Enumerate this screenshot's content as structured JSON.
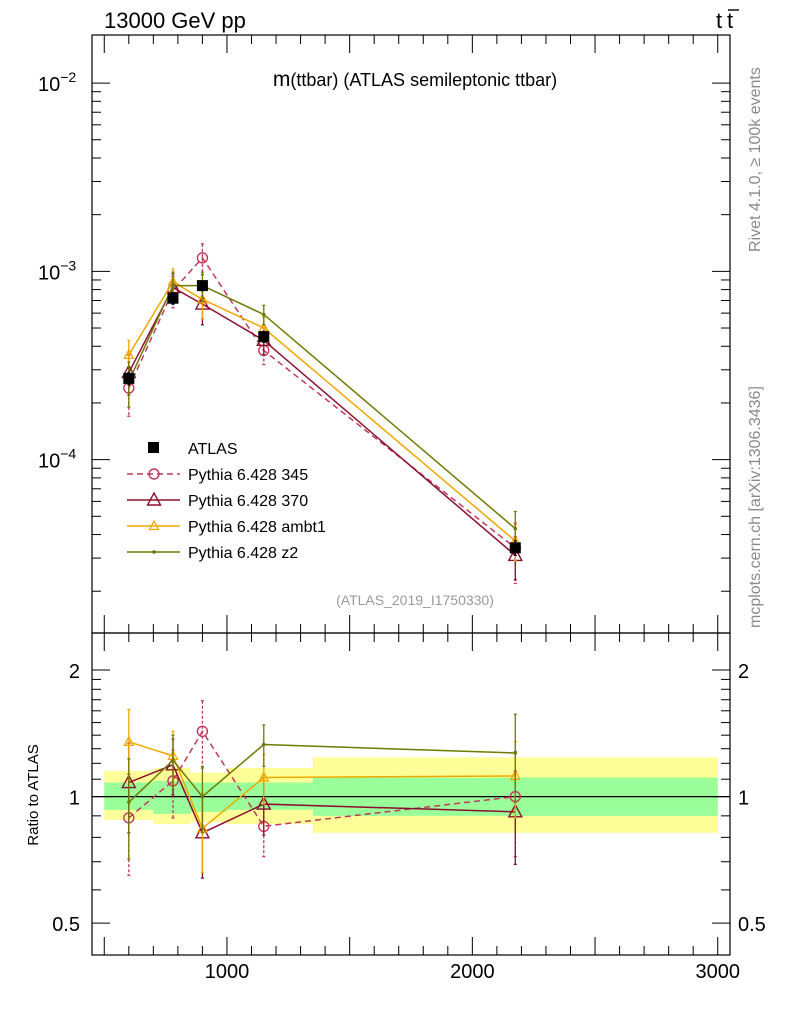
{
  "header": {
    "left": "13000 GeV pp",
    "right": "t",
    "right_bar": "t"
  },
  "side_labels": {
    "rivet": "Rivet 4.1.0, ≥ 100k events",
    "mcplots": "mcplots.cern.ch [arXiv:1306.3436]"
  },
  "colors": {
    "data": "#000000",
    "p345": "#c0395a",
    "p370": "#8b1030",
    "ambt1": "#f0a800",
    "z2": "#6f7a00",
    "band_inner": "#9afe9a",
    "band_outer": "#ffff99"
  },
  "chart_data": [
    {
      "type": "line",
      "title": "m(ttbar) (ATLAS semileptonic ttbar)",
      "title_main": "m",
      "title_rest": "(ttbar) (ATLAS semileptonic ttbar)",
      "analysis_tag": "(ATLAS_2019_I1750330)",
      "xlabel": "",
      "ylabel": "",
      "yscale": "log",
      "xlim": [
        450,
        3050
      ],
      "ylim": [
        1.2e-05,
        0.018
      ],
      "ytick_labels": [
        {
          "value": 0.01,
          "base": "10",
          "exp": "−2"
        },
        {
          "value": 0.001,
          "base": "10",
          "exp": "−3"
        },
        {
          "value": 0.0001,
          "base": "10",
          "exp": "−4"
        }
      ],
      "legend": [
        "ATLAS",
        "Pythia 6.428 345",
        "Pythia 6.428 370",
        "Pythia 6.428 ambt1",
        "Pythia 6.428 z2"
      ],
      "x": [
        600,
        780,
        900,
        1150,
        2175
      ],
      "series": [
        {
          "name": "ATLAS",
          "key": "data",
          "marker": "square",
          "values": [
            0.00027,
            0.00072,
            0.00084,
            0.00045,
            3.4e-05
          ],
          "err": [
            2e-05,
            5e-05,
            5e-05,
            3e-05,
            3e-06
          ]
        },
        {
          "name": "Pythia 6.428 345",
          "key": "p345",
          "marker": "circle",
          "dash": true,
          "values": [
            0.00024,
            0.00079,
            0.00118,
            0.00038,
            3.4e-05
          ],
          "err": [
            7e-05,
            0.00015,
            0.00022,
            6e-05,
            1.2e-05
          ]
        },
        {
          "name": "Pythia 6.428 370",
          "key": "p370",
          "marker": "triangle",
          "values": [
            0.00029,
            0.00082,
            0.00067,
            0.00043,
            3.1e-05
          ],
          "err": [
            7e-05,
            0.00015,
            0.00015,
            7e-05,
            8e-06
          ]
        },
        {
          "name": "Pythia 6.428 ambt1",
          "key": "ambt1",
          "marker": "triangle-small",
          "values": [
            0.00036,
            0.00088,
            0.00071,
            0.0005,
            3.7e-05
          ],
          "err": [
            7e-05,
            0.00015,
            0.00015,
            7e-05,
            8e-06
          ]
        },
        {
          "name": "Pythia 6.428 z2",
          "key": "z2",
          "marker": "dot",
          "values": [
            0.00026,
            0.00084,
            0.00084,
            0.00059,
            4.3e-05
          ],
          "err": [
            7e-05,
            0.00015,
            0.00015,
            7e-05,
            1e-05
          ]
        }
      ]
    },
    {
      "type": "line",
      "title": "",
      "ylabel": "Ratio to ATLAS",
      "xlabel": "",
      "yscale": "log",
      "xlim": [
        450,
        3050
      ],
      "ylim": [
        0.42,
        2.45
      ],
      "yticks": [
        0.5,
        1,
        2
      ],
      "ytick_labels": [
        "0.5",
        "1",
        "2"
      ],
      "xticks": [
        1000,
        2000,
        3000
      ],
      "xtick_labels": [
        "1000",
        "2000",
        "3000"
      ],
      "band_bins": [
        {
          "lo": 500,
          "hi": 700,
          "inner": [
            0.93,
            1.08
          ],
          "outer": [
            0.88,
            1.15
          ]
        },
        {
          "lo": 700,
          "hi": 850,
          "inner": [
            0.91,
            1.09
          ],
          "outer": [
            0.86,
            1.17
          ]
        },
        {
          "lo": 850,
          "hi": 1000,
          "inner": [
            0.92,
            1.08
          ],
          "outer": [
            0.87,
            1.14
          ]
        },
        {
          "lo": 1000,
          "hi": 1350,
          "inner": [
            0.93,
            1.08
          ],
          "outer": [
            0.86,
            1.17
          ]
        },
        {
          "lo": 1350,
          "hi": 3000,
          "inner": [
            0.9,
            1.11
          ],
          "outer": [
            0.82,
            1.24
          ]
        }
      ],
      "x": [
        600,
        780,
        900,
        1150,
        2175
      ],
      "series": [
        {
          "name": "Pythia 6.428 345",
          "key": "p345",
          "marker": "circle",
          "dash": true,
          "values": [
            0.89,
            1.09,
            1.43,
            0.85,
            1.0
          ],
          "err": [
            0.24,
            0.2,
            0.26,
            0.13,
            0.28
          ]
        },
        {
          "name": "Pythia 6.428 370",
          "key": "p370",
          "marker": "triangle",
          "values": [
            1.08,
            1.19,
            0.82,
            0.96,
            0.92
          ],
          "err": [
            0.26,
            0.18,
            0.18,
            0.15,
            0.23
          ]
        },
        {
          "name": "Pythia 6.428 ambt1",
          "key": "ambt1",
          "marker": "triangle-small",
          "values": [
            1.35,
            1.25,
            0.84,
            1.11,
            1.12
          ],
          "err": [
            0.26,
            0.18,
            0.18,
            0.15,
            0.23
          ]
        },
        {
          "name": "Pythia 6.428 z2",
          "key": "z2",
          "marker": "dot",
          "values": [
            0.97,
            1.22,
            1.0,
            1.33,
            1.27
          ],
          "err": [
            0.26,
            0.18,
            0.18,
            0.15,
            0.3
          ]
        }
      ]
    }
  ]
}
